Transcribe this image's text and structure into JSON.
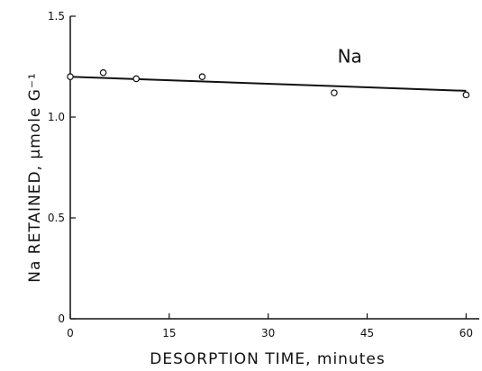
{
  "chart_data": {
    "type": "scatter",
    "xlabel": "DESORPTION TIME, minutes",
    "ylabel": "Na RETAINED, μmole G⁻¹",
    "xlim": [
      0,
      62
    ],
    "ylim": [
      0,
      1.5
    ],
    "x_ticks": [
      0,
      15,
      30,
      45,
      60
    ],
    "x_tick_labels": [
      "0",
      "15",
      "30",
      "45",
      "60"
    ],
    "y_ticks": [
      0,
      0.5,
      1.0,
      1.5
    ],
    "y_tick_labels": [
      "0",
      "0.5",
      "1.0",
      "1.5"
    ],
    "grid": false,
    "series": [
      {
        "name": "Na",
        "points": [
          {
            "x": 0,
            "y": 1.2
          },
          {
            "x": 5,
            "y": 1.22
          },
          {
            "x": 10,
            "y": 1.19
          },
          {
            "x": 20,
            "y": 1.2
          },
          {
            "x": 40,
            "y": 1.12
          },
          {
            "x": 60,
            "y": 1.11
          }
        ],
        "fit_line": {
          "x": [
            0,
            60
          ],
          "y": [
            1.2,
            1.13
          ]
        }
      }
    ]
  }
}
